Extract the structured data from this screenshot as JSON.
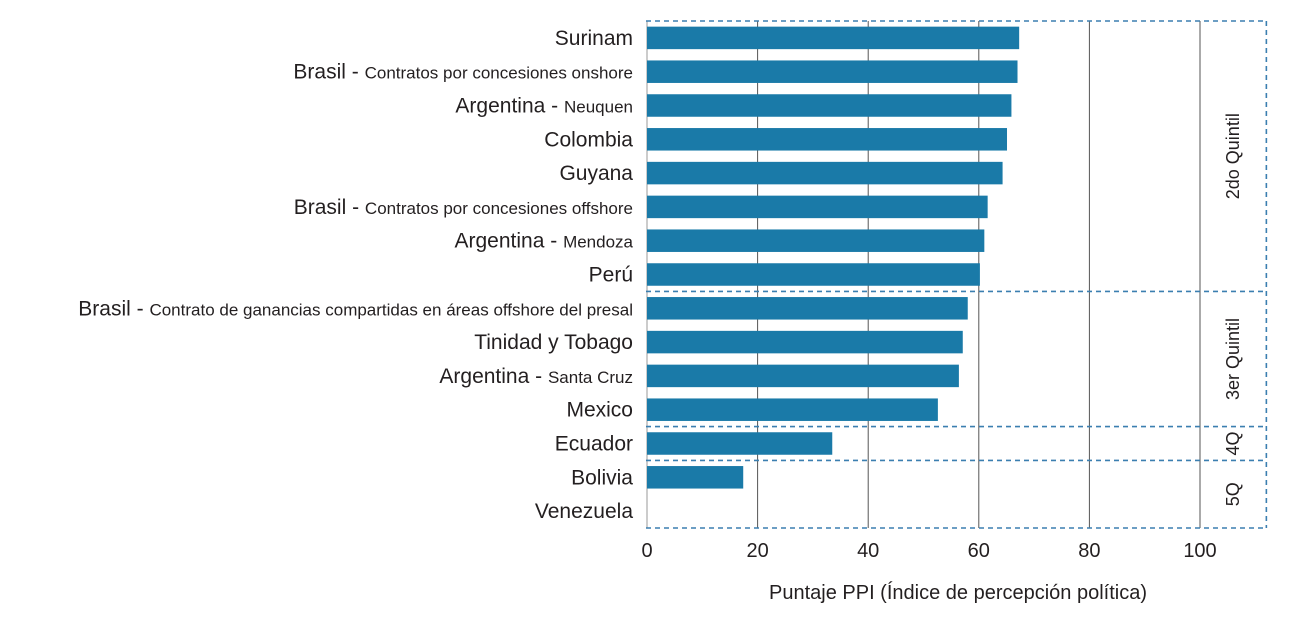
{
  "chart_data": {
    "type": "bar",
    "orientation": "horizontal",
    "xlabel": "Puntaje PPI (Índice de percepción política)",
    "xlim": [
      0,
      112
    ],
    "xticks": [
      0,
      20,
      40,
      60,
      80,
      100
    ],
    "grid": "vertical",
    "bar_color": "#1a7aa8",
    "categories": [
      {
        "main": "Surinam",
        "sub": ""
      },
      {
        "main": "Brasil - ",
        "sub": "Contratos por concesiones onshore"
      },
      {
        "main": "Argentina - ",
        "sub": "Neuquen"
      },
      {
        "main": "Colombia",
        "sub": ""
      },
      {
        "main": "Guyana",
        "sub": ""
      },
      {
        "main": "Brasil - ",
        "sub": "Contratos por concesiones offshore"
      },
      {
        "main": "Argentina - ",
        "sub": "Mendoza"
      },
      {
        "main": "Perú",
        "sub": ""
      },
      {
        "main": "Brasil - ",
        "sub": "Contrato de ganancias compartidas en áreas offshore del presal"
      },
      {
        "main": "Tinidad y Tobago",
        "sub": ""
      },
      {
        "main": "Argentina - ",
        "sub": "Santa Cruz"
      },
      {
        "main": "Mexico",
        "sub": ""
      },
      {
        "main": "Ecuador",
        "sub": ""
      },
      {
        "main": "Bolivia",
        "sub": ""
      },
      {
        "main": "Venezuela",
        "sub": ""
      }
    ],
    "values": [
      67.3,
      67.0,
      65.9,
      65.1,
      64.3,
      61.6,
      61.0,
      60.2,
      58.0,
      57.1,
      56.4,
      52.6,
      33.5,
      17.4,
      0
    ],
    "quintile_bands": [
      {
        "label": "2do Quintil",
        "from_index": 0,
        "to_index": 7
      },
      {
        "label": "3er Quintil",
        "from_index": 8,
        "to_index": 11
      },
      {
        "label": "4Q",
        "from_index": 12,
        "to_index": 12
      },
      {
        "label": "5Q",
        "from_index": 13,
        "to_index": 14
      }
    ],
    "band_line_color": "#3b7fb0"
  }
}
